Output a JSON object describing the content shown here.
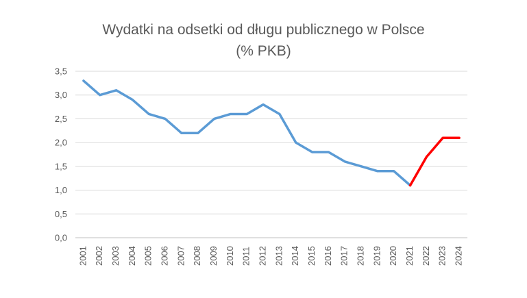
{
  "chart_data": {
    "type": "line",
    "title_line1": "Wydatki na odsetki od długu publicznego w Polsce",
    "title_line2": "(% PKB)",
    "xlabel": "",
    "ylabel": "",
    "categories": [
      "2001",
      "2002",
      "2003",
      "2004",
      "2005",
      "2006",
      "2007",
      "2008",
      "2009",
      "2010",
      "2011",
      "2012",
      "2013",
      "2014",
      "2015",
      "2016",
      "2017",
      "2018",
      "2019",
      "2020",
      "2021",
      "2022",
      "2023",
      "2024"
    ],
    "y_tick_labels": [
      "0,0",
      "0,5",
      "1,0",
      "1,5",
      "2,0",
      "2,5",
      "3,0",
      "3,5"
    ],
    "ylim": [
      0,
      3.5
    ],
    "grid": true,
    "series": [
      {
        "values": [
          3.3,
          3.0,
          3.1,
          2.9,
          2.6,
          2.5,
          2.2,
          2.2,
          2.5,
          2.6,
          2.6,
          2.8,
          2.6,
          2.0,
          1.8,
          1.8,
          1.6,
          1.5,
          1.4,
          1.4,
          1.1,
          1.7,
          2.1,
          2.1
        ],
        "color": "#5b9bd5",
        "highlight_color": "#ff0000",
        "highlight_from": "2021"
      }
    ]
  }
}
